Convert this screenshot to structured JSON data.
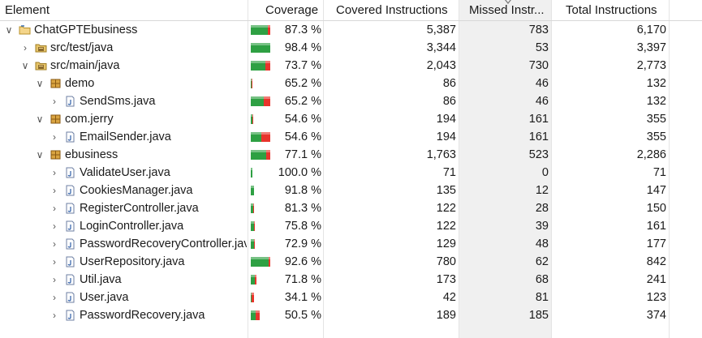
{
  "columns": {
    "element": "Element",
    "coverage": "Coverage",
    "covered": "Covered Instructions",
    "missed": "Missed Instr...",
    "total": "Total Instructions"
  },
  "colors": {
    "covered": "#2ea043",
    "missed": "#e8342c"
  },
  "rows": [
    {
      "name": "ChatGPTEbusiness",
      "icon": "project-folder-icon",
      "expanded": true,
      "depth": 0,
      "coverage": "87.3 %",
      "covered_fraction": 0.873,
      "covered": "5,387",
      "missed": "783",
      "total": "6,170"
    },
    {
      "name": "src/test/java",
      "icon": "source-folder-icon",
      "expanded": false,
      "depth": 1,
      "coverage": "98.4 %",
      "covered_fraction": 0.984,
      "covered": "3,344",
      "missed": "53",
      "total": "3,397"
    },
    {
      "name": "src/main/java",
      "icon": "source-folder-icon",
      "expanded": true,
      "depth": 1,
      "coverage": "73.7 %",
      "covered_fraction": 0.737,
      "covered": "2,043",
      "missed": "730",
      "total": "2,773"
    },
    {
      "name": "demo",
      "icon": "package-icon",
      "expanded": true,
      "depth": 2,
      "coverage": "65.2 %",
      "covered_fraction": 0.652,
      "covered": "86",
      "missed": "46",
      "total": "132",
      "bar_scale": 0.06
    },
    {
      "name": "SendSms.java",
      "icon": "java-file-icon",
      "expanded": false,
      "depth": 3,
      "coverage": "65.2 %",
      "covered_fraction": 0.652,
      "covered": "86",
      "missed": "46",
      "total": "132"
    },
    {
      "name": "com.jerry",
      "icon": "package-icon",
      "expanded": true,
      "depth": 2,
      "coverage": "54.6 %",
      "covered_fraction": 0.546,
      "covered": "194",
      "missed": "161",
      "total": "355",
      "bar_scale": 0.13
    },
    {
      "name": "EmailSender.java",
      "icon": "java-file-icon",
      "expanded": false,
      "depth": 3,
      "coverage": "54.6 %",
      "covered_fraction": 0.546,
      "covered": "194",
      "missed": "161",
      "total": "355"
    },
    {
      "name": "ebusiness",
      "icon": "package-icon",
      "expanded": true,
      "depth": 2,
      "coverage": "77.1 %",
      "covered_fraction": 0.771,
      "covered": "1,763",
      "missed": "523",
      "total": "2,286"
    },
    {
      "name": "ValidateUser.java",
      "icon": "java-file-icon",
      "expanded": false,
      "depth": 3,
      "coverage": "100.0 %",
      "covered_fraction": 1.0,
      "covered": "71",
      "missed": "0",
      "total": "71",
      "bar_scale": 0.08
    },
    {
      "name": "CookiesManager.java",
      "icon": "java-file-icon",
      "expanded": false,
      "depth": 3,
      "coverage": "91.8 %",
      "covered_fraction": 0.918,
      "covered": "135",
      "missed": "12",
      "total": "147",
      "bar_scale": 0.17
    },
    {
      "name": "RegisterController.java",
      "icon": "java-file-icon",
      "expanded": false,
      "depth": 3,
      "coverage": "81.3 %",
      "covered_fraction": 0.813,
      "covered": "122",
      "missed": "28",
      "total": "150",
      "bar_scale": 0.18
    },
    {
      "name": "LoginController.java",
      "icon": "java-file-icon",
      "expanded": false,
      "depth": 3,
      "coverage": "75.8 %",
      "covered_fraction": 0.758,
      "covered": "122",
      "missed": "39",
      "total": "161",
      "bar_scale": 0.19
    },
    {
      "name": "PasswordRecoveryController.java",
      "icon": "java-file-icon",
      "expanded": false,
      "depth": 3,
      "coverage": "72.9 %",
      "covered_fraction": 0.729,
      "covered": "129",
      "missed": "48",
      "total": "177",
      "bar_scale": 0.21
    },
    {
      "name": "UserRepository.java",
      "icon": "java-file-icon",
      "expanded": false,
      "depth": 3,
      "coverage": "92.6 %",
      "covered_fraction": 0.926,
      "covered": "780",
      "missed": "62",
      "total": "842"
    },
    {
      "name": "Util.java",
      "icon": "java-file-icon",
      "expanded": false,
      "depth": 3,
      "coverage": "71.8 %",
      "covered_fraction": 0.718,
      "covered": "173",
      "missed": "68",
      "total": "241",
      "bar_scale": 0.29
    },
    {
      "name": "User.java",
      "icon": "java-file-icon",
      "expanded": false,
      "depth": 3,
      "coverage": "34.1 %",
      "covered_fraction": 0.341,
      "covered": "42",
      "missed": "81",
      "total": "123",
      "bar_scale": 0.15
    },
    {
      "name": "PasswordRecovery.java",
      "icon": "java-file-icon",
      "expanded": false,
      "depth": 3,
      "coverage": "50.5 %",
      "covered_fraction": 0.505,
      "covered": "189",
      "missed": "185",
      "total": "374",
      "bar_scale": 0.44
    }
  ]
}
